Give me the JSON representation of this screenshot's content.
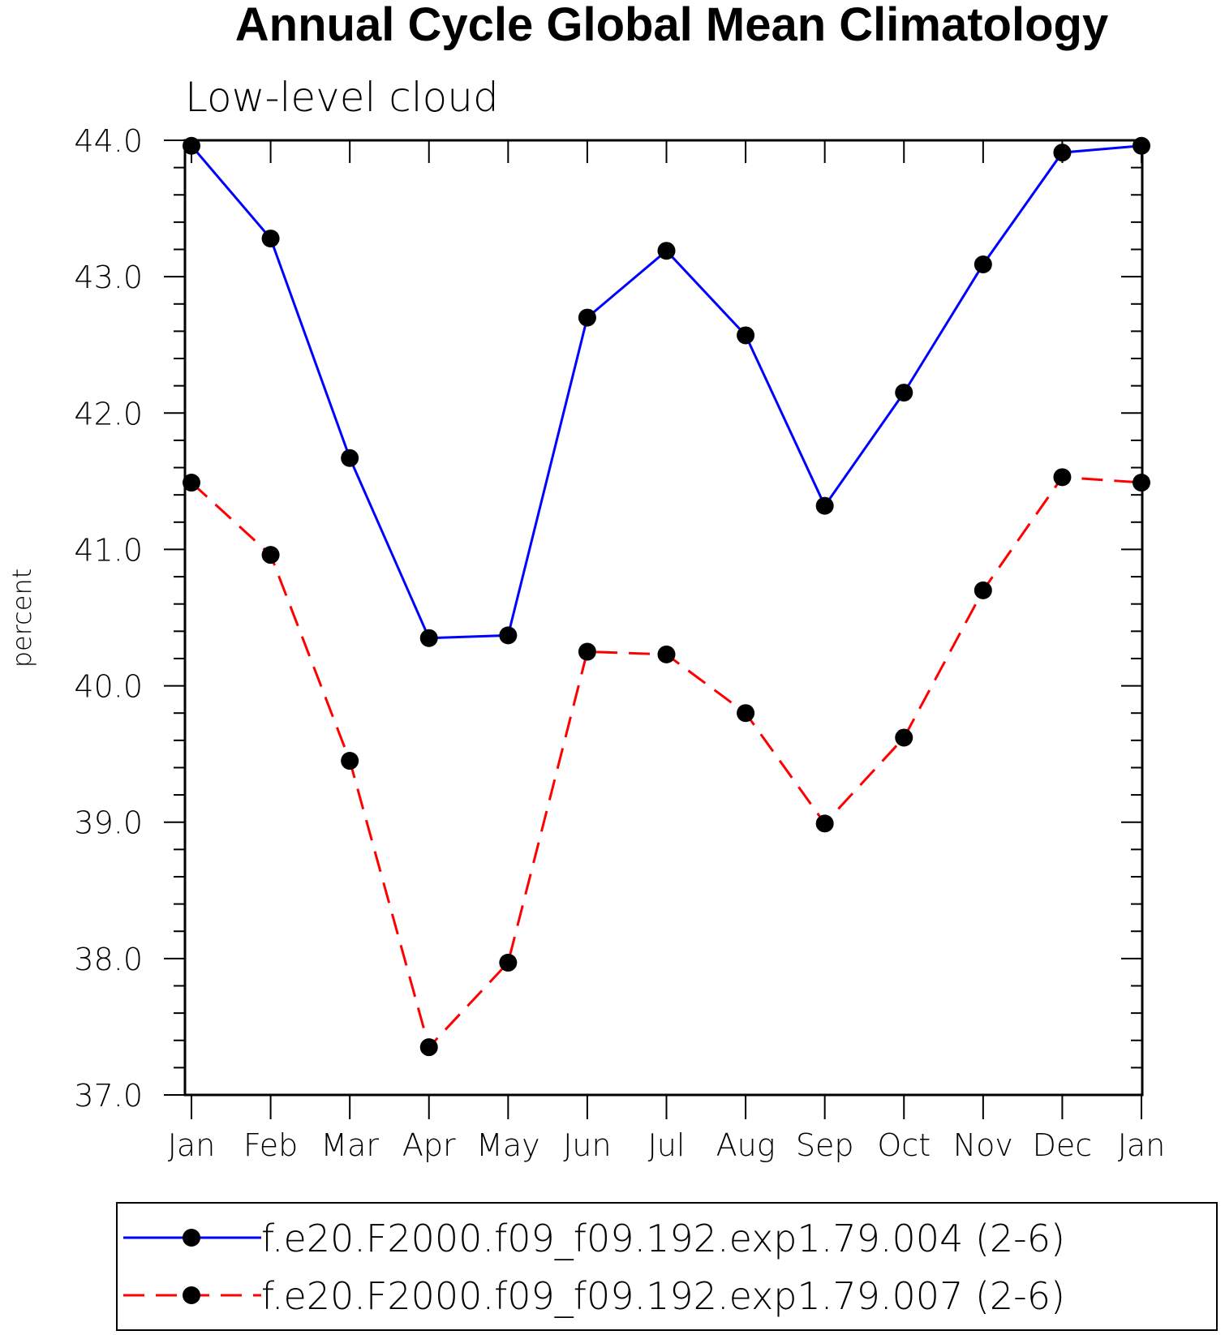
{
  "chart_data": {
    "type": "line",
    "title": "Annual Cycle Global Mean Climatology",
    "subtitle": "Low-level cloud",
    "xlabel": "",
    "ylabel": "percent",
    "categories": [
      "Jan",
      "Feb",
      "Mar",
      "Apr",
      "May",
      "Jun",
      "Jul",
      "Aug",
      "Sep",
      "Oct",
      "Nov",
      "Dec",
      "Jan"
    ],
    "ylim": [
      37.0,
      44.0
    ],
    "yticks": [
      "37.0",
      "38.0",
      "39.0",
      "40.0",
      "41.0",
      "42.0",
      "43.0",
      "44.0"
    ],
    "grid": false,
    "legend_position": "bottom",
    "series": [
      {
        "name": "f.e20.F2000.f09_f09.192.exp1.79.004 (2-6)",
        "color": "#0000ff",
        "dash": "solid",
        "values": [
          43.96,
          43.28,
          41.67,
          40.35,
          40.37,
          42.7,
          43.19,
          42.57,
          41.32,
          42.15,
          43.09,
          43.91,
          43.96
        ]
      },
      {
        "name": "f.e20.F2000.f09_f09.192.exp1.79.007 (2-6)",
        "color": "#ff0000",
        "dash": "dashed",
        "values": [
          41.49,
          40.96,
          39.45,
          37.35,
          37.97,
          40.25,
          40.23,
          39.8,
          38.99,
          39.62,
          40.7,
          41.53,
          41.49
        ]
      }
    ]
  }
}
